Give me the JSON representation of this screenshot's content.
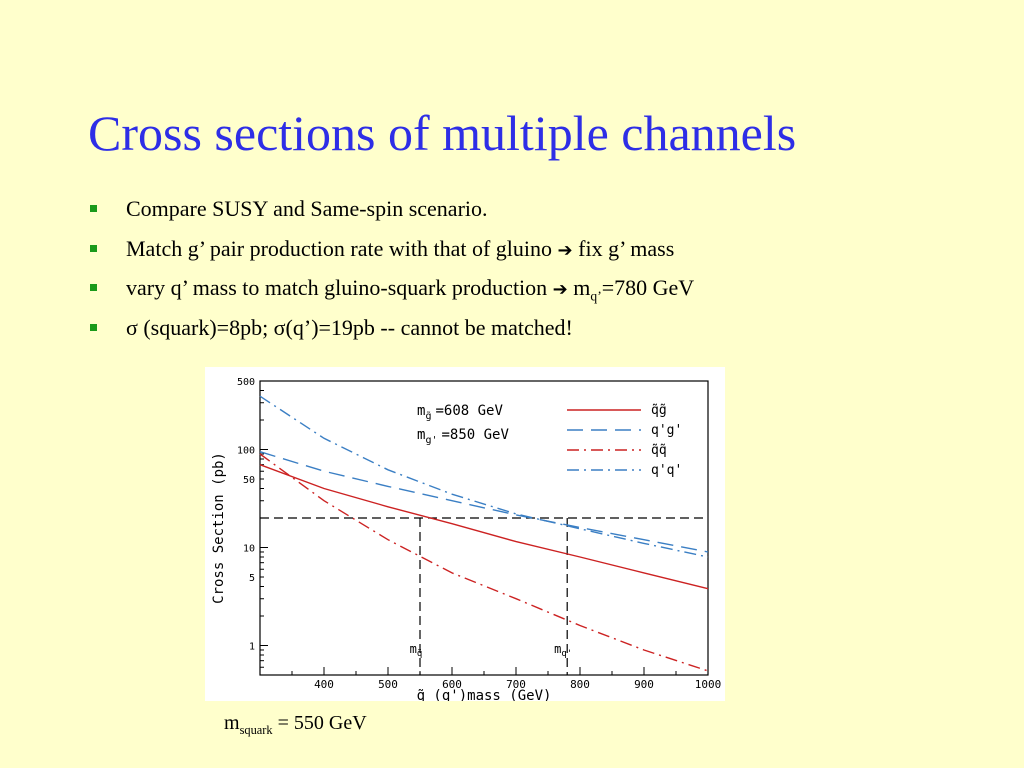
{
  "slide": {
    "title": "Cross sections of multiple channels",
    "bullets": [
      {
        "text": "Compare SUSY and Same-spin scenario."
      },
      {
        "pre": "Match g’ pair production rate with that of gluino ",
        "arrow": "➔",
        "post": " fix g’ mass"
      },
      {
        "pre": "vary q’ mass to match gluino-squark production ",
        "arrow": "➔",
        "post_m": " m",
        "post_sub": "q’",
        "post_tail": "=780 GeV"
      },
      {
        "text": "σ (squark)=8pb; σ(q’)=19pb  --  cannot be matched!"
      }
    ],
    "caption": {
      "m": "m",
      "sub": "squark",
      "tail": " = 550 GeV"
    },
    "colors": {
      "title": "#2e2ee6",
      "bullet_marker": "#1a9a1a",
      "background": "#ffffcc"
    }
  },
  "chart_data": {
    "type": "line",
    "xlabel": "q̃ (q')mass (GeV)",
    "ylabel": "Cross Section (pb)",
    "xlim": [
      300,
      1000
    ],
    "ylim": [
      0.5,
      500
    ],
    "yscale": "log",
    "xticks": [
      400,
      500,
      600,
      700,
      800,
      900,
      1000
    ],
    "xtick_labels": [
      "400",
      "500",
      "600",
      "700",
      "800",
      "900",
      "1000"
    ],
    "yticks": [
      1,
      5,
      10,
      50,
      100,
      500
    ],
    "ytick_labels": [
      "1",
      "5",
      "10",
      "50",
      "100",
      "500"
    ],
    "legend_params": [
      {
        "sym": "m",
        "sub": "g̃",
        "val": "=608 GeV"
      },
      {
        "sym": "m",
        "sub": "g'",
        "val": "=850 GeV"
      }
    ],
    "legend_position": "top-right",
    "series": [
      {
        "name": "q̃g̃",
        "color": "#cc2222",
        "dash": "solid",
        "x": [
          300,
          400,
          500,
          600,
          700,
          800,
          900,
          1000
        ],
        "y": [
          70,
          40,
          26,
          17.5,
          11.5,
          8,
          5.5,
          3.8
        ]
      },
      {
        "name": "q'g'",
        "color": "#3b7fc4",
        "dash": "long",
        "x": [
          300,
          400,
          500,
          600,
          700,
          800,
          900,
          1000
        ],
        "y": [
          95,
          60,
          42,
          30,
          21.5,
          16,
          12,
          9
        ]
      },
      {
        "name": "q̃q̃",
        "color": "#cc2222",
        "dash": "dashdot",
        "x": [
          300,
          400,
          500,
          600,
          700,
          800,
          900,
          1000
        ],
        "y": [
          90,
          30,
          12,
          5.5,
          3,
          1.6,
          0.9,
          0.55
        ]
      },
      {
        "name": "q'q'",
        "color": "#3b7fc4",
        "dash": "dashdot",
        "x": [
          300,
          400,
          500,
          600,
          700,
          800,
          900,
          1000
        ],
        "y": [
          350,
          130,
          62,
          35,
          22,
          15.5,
          11,
          8
        ]
      }
    ],
    "reference_lines": {
      "horizontal_y": 20,
      "vertical_x": [
        550,
        780
      ],
      "vertical_labels": [
        {
          "sym": "m",
          "sub": "q̃"
        },
        {
          "sym": "m",
          "sub": "q'"
        }
      ]
    }
  }
}
